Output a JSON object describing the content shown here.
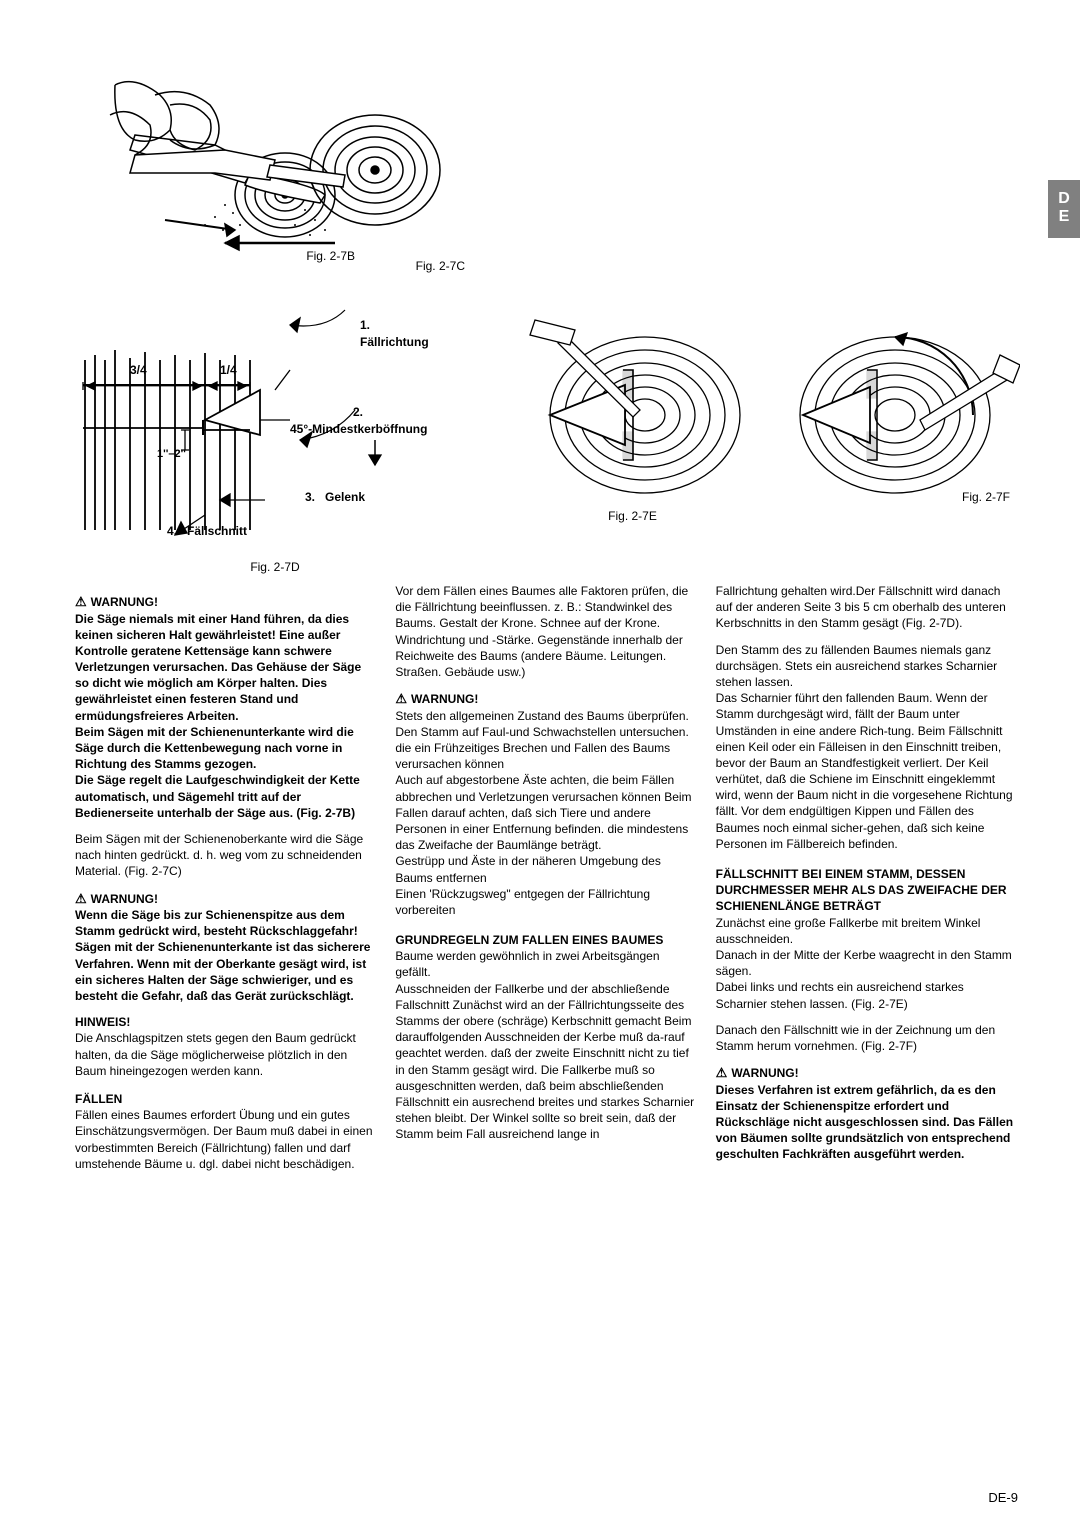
{
  "tab": "D\nE",
  "figs": {
    "b": "Fig. 2-7B",
    "c": "Fig. 2-7C",
    "d": "Fig. 2-7D",
    "e": "Fig. 2-7E",
    "f": "Fig. 2-7F"
  },
  "diagram": {
    "faellrichtung": "Fällrichtung",
    "mindest": "45°-Mindestkerböffnung",
    "gelenk": "Gelenk",
    "faellschnitt": "Fällschnitt",
    "n1": "1.",
    "n2": "2.",
    "n3": "3.",
    "n4": "4.",
    "frac34": "3/4",
    "frac14": "1/4",
    "dist": "1''–2''"
  },
  "col1": {
    "w1": "WARNUNG!",
    "w1text": "Die Säge niemals mit einer Hand führen, da dies keinen sicheren Halt gewährleistet! Eine außer Kontrolle geratene Kettensäge kann schwere Verletzungen verursachen. Das Gehäuse der Säge so dicht wie möglich am Körper halten. Dies gewährleistet einen festeren Stand und ermüdungsfreieres Arbeiten.",
    "w1b": "Beim Sägen mit der Schienenunterkante wird die Säge durch die Kettenbewegung nach vorne in Richtung des Stamms gezogen.",
    "w1c": "Die Säge regelt die Laufgeschwindigkeit der Kette automatisch, und Sägemehl tritt auf der Bedienerseite unterhalb der Säge aus. (Fig. 2-7B)",
    "p1": "Beim Sägen mit der Schienenoberkante wird die Säge nach hinten gedrückt. d. h. weg vom zu schneidenden Material. (Fig. 2-7C)",
    "w2": "WARNUNG!",
    "w2text": "Wenn die Säge bis zur Schienenspitze aus dem Stamm gedrückt wird, besteht Rückschlaggefahr!",
    "w2b": "Sägen mit der Schienenunterkante ist das sicherere Verfahren. Wenn mit der Oberkante gesägt wird, ist ein sicheres Halten der Säge schwieriger, und es besteht die Gefahr, daß das Gerät zurückschlägt.",
    "hinweis": "HINWEIS!",
    "hinweistext": "Die Anschlagspitzen stets gegen den Baum gedrückt halten, da die Säge möglicherweise plötzlich in den Baum hineingezogen werden kann.",
    "faellen": "FÄLLEN",
    "faellentext": "Fällen eines Baumes erfordert Übung und ein gutes Einschätzungsvermögen. Der Baum muß dabei in einen vorbestimmten Bereich (Fällrichtung) fallen und darf umstehende Bäume u. dgl. dabei nicht beschädigen."
  },
  "col2": {
    "p1": "Vor dem Fällen eines Baumes alle Faktoren prüfen, die die Fällrichtung beeinflussen. z. B.: Standwinkel des Baums. Gestalt der Krone. Schnee auf der Krone. Windrichtung und -Stärke. Gegenstände innerhalb der Reichweite des Baums (andere Bäume. Leitungen. Straßen. Gebäude usw.)",
    "w1": "WARNUNG!",
    "w1text": "Stets den allgemeinen Zustand des Baums überprüfen. Den Stamm auf Faul-und Schwachstellen untersuchen. die ein Frühzeitiges Brechen und Fallen des Baums verursachen können",
    "w1b": "Auch auf abgestorbene Äste achten, die beim Fällen abbrechen und Verletzungen verursachen können Beim Fallen darauf achten, daß sich Tiere und andere Personen in einer Entfernung befinden. die mindestens das Zweifache der Baumlänge beträgt.",
    "w1c": "Gestrüpp und Äste in der näheren Umgebung des Baums entfernen",
    "w1d": "Einen 'Rückzugsweg\" entgegen der Fällrichtung vorbereiten",
    "grund": "GRUNDREGELN ZUM FALLEN EINES BAUMES",
    "grundtext": "Baume werden gewöhnlich in zwei Arbeitsgängen gefällt.",
    "grundtext2": "Ausschneiden der Fallkerbe und der abschließende Fallschnitt Zunächst wird an der Fällrichtungsseite des Stamms der obere (schräge) Kerbschnitt gemacht Beim darauffolgenden Ausschneiden der Kerbe muß da-rauf geachtet werden. daß der zweite Einschnitt nicht zu tief in den Stamm gesägt wird. Die Fallkerbe muß so ausgeschnitten werden, daß beim abschließenden Fällschnitt ein ausrechend breites und starkes Scharnier stehen bleibt. Der Winkel sollte so breit sein, daß der Stamm beim Fall ausreichend lange in"
  },
  "col3": {
    "p1": "Fallrichtung gehalten wird.Der Fällschnitt wird danach auf der anderen Seite 3 bis 5 cm oberhalb des unteren Kerbschnitts in den Stamm gesägt (Fig. 2-7D).",
    "p2": "Den Stamm des zu fällenden Baumes niemals ganz durchsägen. Stets ein ausreichend starkes Scharnier stehen lassen.",
    "p2b": "Das Scharnier führt den fallenden Baum. Wenn der Stamm durchgesägt wird, fällt der Baum unter Umständen in eine andere Rich-tung. Beim Fällschnitt einen Keil oder ein Fälleisen in den Einschnitt treiben, bevor der Baum an Standfestigkeit verliert. Der Keil verhütet, daß die Schiene im Einschnitt eingeklemmt wird, wenn der Baum nicht in die vorgesehene Richtung fällt. Vor dem endgültigen Kippen und Fällen des Baumes noch einmal sicher-gehen, daß sich keine Personen im Fällbereich befinden.",
    "h1": "FÄLLSCHNITT BEI EINEM STAMM, DESSEN DURCHMESSER MEHR ALS DAS ZWEIFACHE DER SCHIENENLÄNGE BETRÄGT",
    "h1text": "Zunächst eine große Fallkerbe mit breitem Winkel ausschneiden.",
    "h1text2": "Danach in der Mitte der Kerbe waagrecht in den Stamm sägen.",
    "h1text3": "Dabei links und rechts ein ausreichend starkes Scharnier stehen lassen. (Fig. 2-7E)",
    "p3": "Danach den Fällschnitt wie in der Zeichnung um den Stamm herum vornehmen. (Fig. 2-7F)",
    "w1": "WARNUNG!",
    "w1text": "Dieses Verfahren ist extrem gefährlich, da es den Einsatz der Schienenspitze erfordert und Rückschläge nicht ausgeschlossen sind. Das Fällen von Bäumen sollte grundsätzlich von entsprechend geschulten Fachkräften ausgeführt werden."
  },
  "pageNum": "DE-9"
}
